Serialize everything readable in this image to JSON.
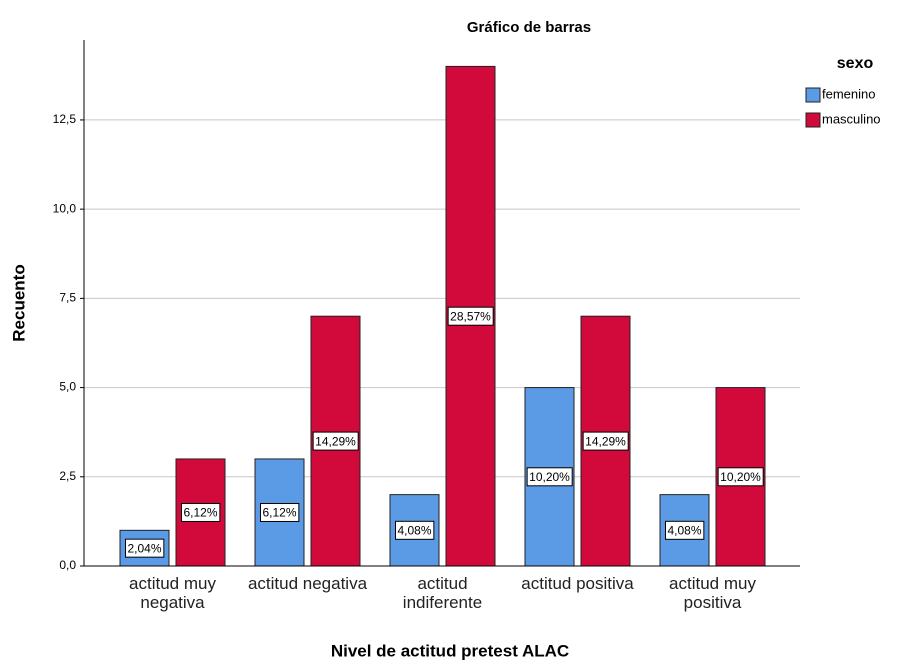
{
  "chart_data": {
    "type": "bar",
    "title": "Gráfico de barras",
    "x_label": "Nivel de actitud pretest ALAC",
    "y_label": "Recuento",
    "legend_title": "sexo",
    "legend": "right",
    "categories": [
      "actitud muy negativa",
      "actitud negativa",
      "actitud indiferente",
      "actitud positiva",
      "actitud muy positiva"
    ],
    "series": [
      {
        "name": "femenino",
        "color": "#5b9be6",
        "values": [
          1,
          3,
          2,
          5,
          2
        ],
        "percent_labels": [
          "2,04%",
          "6,12%",
          "4,08%",
          "10,20%",
          "4,08%"
        ]
      },
      {
        "name": "masculino",
        "color": "#d20a3c",
        "values": [
          3,
          7,
          14,
          7,
          5
        ],
        "percent_labels": [
          "6,12%",
          "14,29%",
          "28,57%",
          "14,29%",
          "10,20%"
        ]
      }
    ],
    "ylim": [
      0,
      14.74
    ],
    "yticks": [
      {
        "value": 0,
        "label": "0,0"
      },
      {
        "value": 2.5,
        "label": "2,5"
      },
      {
        "value": 5,
        "label": "5,0"
      },
      {
        "value": 7.5,
        "label": "7,5"
      },
      {
        "value": 10,
        "label": "10,0"
      },
      {
        "value": 12.5,
        "label": "12,5"
      }
    ],
    "grid": true
  }
}
